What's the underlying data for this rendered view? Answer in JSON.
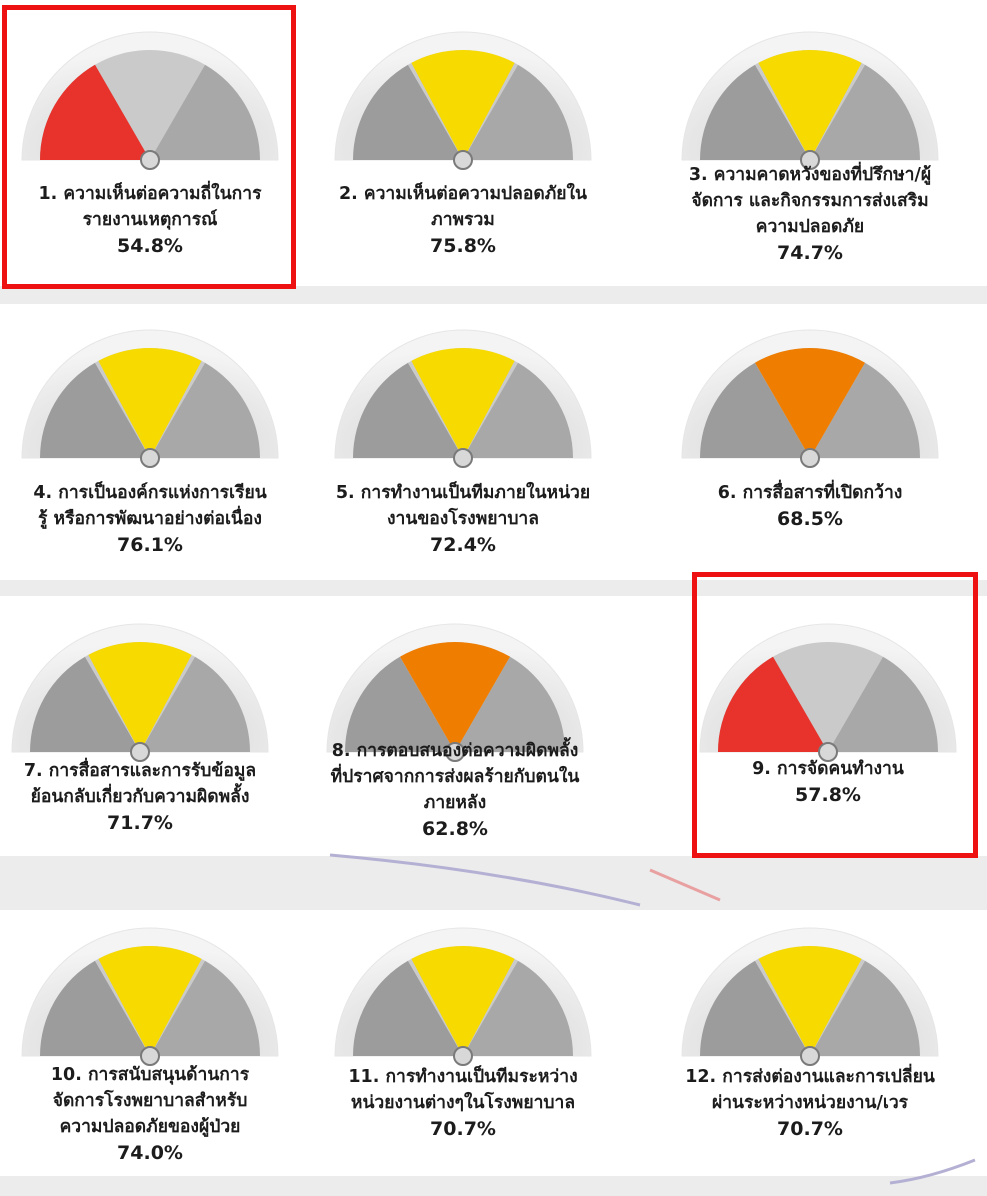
{
  "chart_data": [
    {
      "type": "gauge",
      "title_lines": [
        "1. ความเห็นต่อความถี่ในการ",
        "รายงานเหตุการณ์"
      ],
      "value": 54.8,
      "value_label": "54.8%",
      "band": "red",
      "highlighted": true
    },
    {
      "type": "gauge",
      "title_lines": [
        "2. ความเห็นต่อความปลอดภัยใน",
        "ภาพรวม"
      ],
      "value": 75.8,
      "value_label": "75.8%",
      "band": "yellow",
      "highlighted": false
    },
    {
      "type": "gauge",
      "title_lines": [
        "3. ความคาดหวังของที่ปรึกษา/ผู้",
        "จัดการ และกิจกรรมการส่งเสริม",
        "ความปลอดภัย"
      ],
      "value": 74.7,
      "value_label": "74.7%",
      "band": "yellow",
      "highlighted": false
    },
    {
      "type": "gauge",
      "title_lines": [
        "4. การเป็นองค์กรแห่งการเรียน",
        "รู้ หรือการพัฒนาอย่างต่อเนื่อง"
      ],
      "value": 76.1,
      "value_label": "76.1%",
      "band": "yellow",
      "highlighted": false
    },
    {
      "type": "gauge",
      "title_lines": [
        "5. การทำงานเป็นทีมภายในหน่วย",
        "งานของโรงพยาบาล"
      ],
      "value": 72.4,
      "value_label": "72.4%",
      "band": "yellow",
      "highlighted": false
    },
    {
      "type": "gauge",
      "title_lines": [
        "6. การสื่อสารที่เปิดกว้าง"
      ],
      "value": 68.5,
      "value_label": "68.5%",
      "band": "orange",
      "highlighted": false
    },
    {
      "type": "gauge",
      "title_lines": [
        "7. การสื่อสารและการรับข้อมูล",
        "ย้อนกลับเกี่ยวกับความผิดพลั้ง"
      ],
      "value": 71.7,
      "value_label": "71.7%",
      "band": "yellow",
      "highlighted": false
    },
    {
      "type": "gauge",
      "title_lines": [
        "8. การตอบสนองต่อความผิดพลั้ง",
        "ที่ปราศจากการส่งผลร้ายกับตนใน",
        "ภายหลัง"
      ],
      "value": 62.8,
      "value_label": "62.8%",
      "band": "orange",
      "highlighted": false
    },
    {
      "type": "gauge",
      "title_lines": [
        "9. การจัดคนทำงาน"
      ],
      "value": 57.8,
      "value_label": "57.8%",
      "band": "red",
      "highlighted": true
    },
    {
      "type": "gauge",
      "title_lines": [
        "10. การสนับสนุนด้านการ",
        "จัดการโรงพยาบาลสำหรับ",
        "ความปลอดภัยของผู้ป่วย"
      ],
      "value": 74.0,
      "value_label": "74.0%",
      "band": "yellow",
      "highlighted": false
    },
    {
      "type": "gauge",
      "title_lines": [
        "11. การทำงานเป็นทีมระหว่าง",
        "หน่วยงานต่างๆในโรงพยาบาล"
      ],
      "value": 70.7,
      "value_label": "70.7%",
      "band": "yellow",
      "highlighted": false
    },
    {
      "type": "gauge",
      "title_lines": [
        "12. การส่งต่องานและการเปลี่ยน",
        "ผ่านระหว่างหน่วยงาน/เวร"
      ],
      "value": 70.7,
      "value_label": "70.7%",
      "band": "yellow",
      "highlighted": false
    }
  ],
  "colors": {
    "red": "#e8332c",
    "orange": "#ef7d00",
    "yellow": "#f7da00",
    "highlight": "#ee1111"
  }
}
